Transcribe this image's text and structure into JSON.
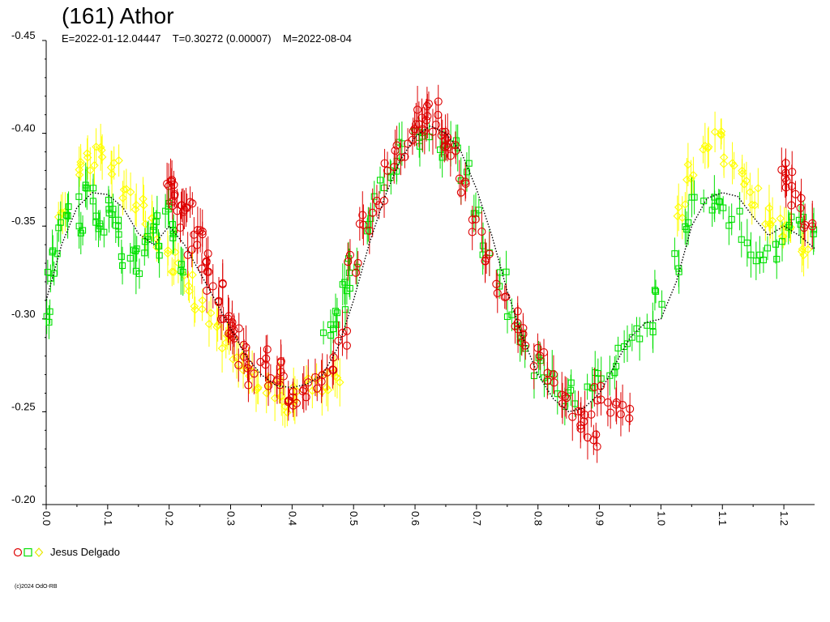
{
  "header": {
    "title": "(161) Athor",
    "params": "E=2022-01-12.04447    T=0.30272 (0.00007)    M=2022-08-04"
  },
  "legend": {
    "label": "Jesus Delgado"
  },
  "footer": {
    "copyright": "(c)2024 OdO-RB"
  },
  "colors": {
    "red": "#dd0000",
    "green": "#00e000",
    "yellow": "#ffff00",
    "fit": "#000000"
  },
  "chart_data": {
    "type": "scatter",
    "title": "(161) Athor",
    "xlabel": "",
    "ylabel": "",
    "xlim": [
      0.0,
      1.25
    ],
    "ylim": [
      -0.45,
      -0.2
    ],
    "y_inverted": true,
    "x_ticks": [
      "0.0",
      "0.1",
      "0.2",
      "0.3",
      "0.4",
      "0.5",
      "0.6",
      "0.7",
      "0.8",
      "0.9",
      "1.0",
      "1.1",
      "1.2"
    ],
    "y_ticks": [
      "-0.45",
      "-0.40",
      "-0.35",
      "-0.30",
      "-0.25",
      "-0.20"
    ],
    "fit_curve": {
      "x": [
        0.0,
        0.025,
        0.05,
        0.075,
        0.1,
        0.125,
        0.15,
        0.175,
        0.2,
        0.225,
        0.25,
        0.275,
        0.3,
        0.325,
        0.35,
        0.375,
        0.4,
        0.425,
        0.45,
        0.475,
        0.5,
        0.525,
        0.55,
        0.575,
        0.6,
        0.625,
        0.65,
        0.675,
        0.7,
        0.725,
        0.75,
        0.775,
        0.8,
        0.825,
        0.85,
        0.875,
        0.9,
        0.925,
        0.95,
        0.975,
        1.0,
        1.025,
        1.05,
        1.075,
        1.1,
        1.125,
        1.15,
        1.175,
        1.2,
        1.225,
        1.25
      ],
      "y": [
        -0.31,
        -0.34,
        -0.36,
        -0.368,
        -0.367,
        -0.36,
        -0.346,
        -0.34,
        -0.35,
        -0.34,
        -0.325,
        -0.31,
        -0.295,
        -0.28,
        -0.27,
        -0.264,
        -0.263,
        -0.265,
        -0.27,
        -0.285,
        -0.31,
        -0.34,
        -0.365,
        -0.385,
        -0.398,
        -0.404,
        -0.4,
        -0.39,
        -0.37,
        -0.345,
        -0.315,
        -0.29,
        -0.27,
        -0.257,
        -0.25,
        -0.252,
        -0.26,
        -0.275,
        -0.29,
        -0.298,
        -0.3,
        -0.32,
        -0.35,
        -0.365,
        -0.368,
        -0.366,
        -0.355,
        -0.345,
        -0.35,
        -0.345,
        -0.338
      ]
    },
    "series": [
      {
        "name": "Jesus Delgado",
        "marker": "circle",
        "color": "red",
        "x": [
          0.2,
          0.205,
          0.215,
          0.22,
          0.23,
          0.24,
          0.25,
          0.26,
          0.27,
          0.28,
          0.29,
          0.3,
          0.31,
          0.32,
          0.33,
          0.35,
          0.37,
          0.38,
          0.39,
          0.4,
          0.42,
          0.44,
          0.46,
          0.48,
          0.5,
          0.52,
          0.54,
          0.56,
          0.58,
          0.6,
          0.61,
          0.62,
          0.63,
          0.64,
          0.65,
          0.66,
          0.68,
          0.7,
          0.72,
          0.74,
          0.76,
          0.78,
          0.8,
          0.82,
          0.84,
          0.86,
          0.88,
          0.89,
          0.9,
          0.92,
          0.94,
          1.2,
          1.21,
          1.22,
          1.24
        ],
        "y": [
          -0.375,
          -0.37,
          -0.36,
          -0.355,
          -0.365,
          -0.34,
          -0.35,
          -0.33,
          -0.32,
          -0.315,
          -0.3,
          -0.29,
          -0.295,
          -0.28,
          -0.27,
          -0.28,
          -0.268,
          -0.275,
          -0.26,
          -0.255,
          -0.262,
          -0.265,
          -0.275,
          -0.29,
          -0.33,
          -0.35,
          -0.36,
          -0.385,
          -0.39,
          -0.4,
          -0.41,
          -0.405,
          -0.415,
          -0.4,
          -0.395,
          -0.39,
          -0.37,
          -0.35,
          -0.33,
          -0.315,
          -0.3,
          -0.29,
          -0.28,
          -0.265,
          -0.255,
          -0.245,
          -0.25,
          -0.235,
          -0.26,
          -0.255,
          -0.25,
          -0.38,
          -0.375,
          -0.365,
          -0.35
        ]
      },
      {
        "name": "Jesus Delgado",
        "marker": "square",
        "color": "green",
        "x": [
          0.0,
          0.01,
          0.02,
          0.03,
          0.04,
          0.05,
          0.06,
          0.07,
          0.08,
          0.09,
          0.1,
          0.11,
          0.12,
          0.13,
          0.14,
          0.15,
          0.16,
          0.17,
          0.18,
          0.19,
          0.2,
          0.21,
          0.22,
          0.46,
          0.47,
          0.48,
          0.49,
          0.5,
          0.52,
          0.54,
          0.56,
          0.58,
          0.6,
          0.62,
          0.64,
          0.66,
          0.68,
          0.7,
          0.72,
          0.74,
          0.76,
          0.78,
          0.8,
          0.82,
          0.84,
          0.86,
          0.88,
          0.9,
          0.92,
          0.94,
          0.96,
          0.98,
          1.0,
          1.02,
          1.04,
          1.06,
          1.08,
          1.1,
          1.12,
          1.14,
          1.16,
          1.18,
          1.2,
          1.22,
          1.24
        ],
        "y": [
          -0.3,
          -0.32,
          -0.34,
          -0.355,
          -0.36,
          -0.35,
          -0.37,
          -0.365,
          -0.355,
          -0.35,
          -0.36,
          -0.355,
          -0.345,
          -0.33,
          -0.34,
          -0.33,
          -0.345,
          -0.35,
          -0.34,
          -0.36,
          -0.355,
          -0.345,
          -0.33,
          -0.29,
          -0.3,
          -0.31,
          -0.32,
          -0.33,
          -0.35,
          -0.37,
          -0.38,
          -0.39,
          -0.395,
          -0.395,
          -0.39,
          -0.395,
          -0.38,
          -0.36,
          -0.34,
          -0.32,
          -0.3,
          -0.285,
          -0.275,
          -0.265,
          -0.255,
          -0.26,
          -0.265,
          -0.27,
          -0.275,
          -0.285,
          -0.29,
          -0.295,
          -0.31,
          -0.33,
          -0.35,
          -0.36,
          -0.36,
          -0.365,
          -0.355,
          -0.34,
          -0.33,
          -0.335,
          -0.345,
          -0.355,
          -0.35
        ]
      },
      {
        "name": "Jesus Delgado",
        "marker": "diamond",
        "color": "yellow",
        "x": [
          0.03,
          0.05,
          0.07,
          0.09,
          0.11,
          0.13,
          0.15,
          0.17,
          0.19,
          0.21,
          0.23,
          0.25,
          0.27,
          0.29,
          0.31,
          0.33,
          0.35,
          0.37,
          0.39,
          0.41,
          0.43,
          0.45,
          0.47,
          1.03,
          1.05,
          1.07,
          1.09,
          1.11,
          1.13,
          1.15,
          1.17,
          1.19,
          1.21,
          1.23
        ],
        "y": [
          -0.36,
          -0.38,
          -0.385,
          -0.39,
          -0.38,
          -0.37,
          -0.36,
          -0.35,
          -0.34,
          -0.33,
          -0.32,
          -0.31,
          -0.3,
          -0.29,
          -0.28,
          -0.27,
          -0.265,
          -0.26,
          -0.255,
          -0.26,
          -0.262,
          -0.265,
          -0.27,
          -0.36,
          -0.38,
          -0.39,
          -0.395,
          -0.385,
          -0.375,
          -0.365,
          -0.355,
          -0.35,
          -0.345,
          -0.34
        ]
      }
    ]
  }
}
